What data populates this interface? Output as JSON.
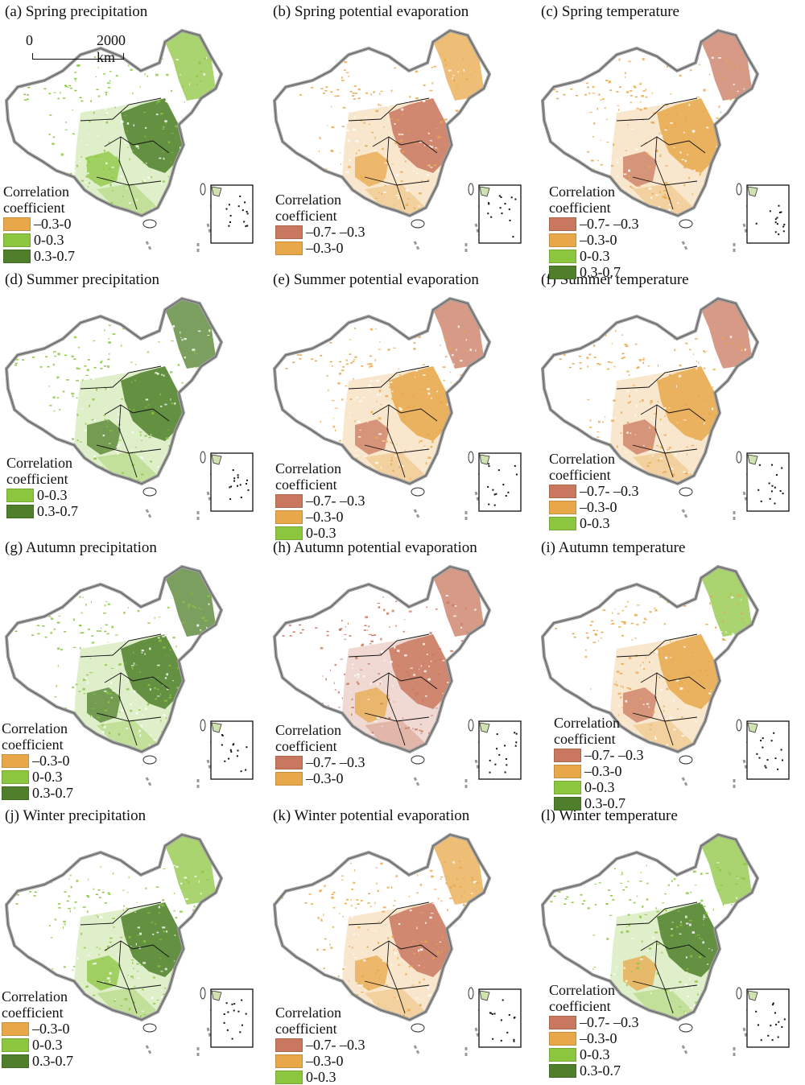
{
  "scalebar": {
    "zero": "0",
    "distance": "2000 km"
  },
  "legend_title": "Correlation\ncoefficient",
  "classes": {
    "neg_strong": {
      "label": "–0.7- –0.3",
      "color": "#c9785f"
    },
    "neg_weak": {
      "label": "–0.3-0",
      "color": "#e8a84a"
    },
    "pos_weak": {
      "label": "0-0.3",
      "color": "#8cc63f"
    },
    "pos_strong": {
      "label": "0.3-0.7",
      "color": "#4f7f2a"
    }
  },
  "panels": [
    {
      "id": "a",
      "title": "(a) Spring precipitation",
      "legend": [
        [
          "–0.3-0",
          "#e8a84a"
        ],
        [
          "0-0.3",
          "#8cc63f"
        ],
        [
          "0.3-0.7",
          "#4f7f2a"
        ]
      ],
      "dominant": "#8cc63f",
      "east": "#4f7f2a",
      "north": "#8cc63f",
      "sw": "#8cc63f"
    },
    {
      "id": "b",
      "title": "(b) Spring potential evaporation",
      "legend": [
        [
          "–0.7- –0.3",
          "#c9785f"
        ],
        [
          "–0.3-0",
          "#e8a84a"
        ]
      ],
      "dominant": "#e8a84a",
      "east": "#c9785f",
      "north": "#e8a84a",
      "sw": "#e8a84a"
    },
    {
      "id": "c",
      "title": "(c) Spring temperature",
      "legend": [
        [
          "–0.7- –0.3",
          "#c9785f"
        ],
        [
          "–0.3-0",
          "#e8a84a"
        ],
        [
          "0-0.3",
          "#8cc63f"
        ],
        [
          "0.3-0.7",
          "#4f7f2a"
        ]
      ],
      "dominant": "#e8a84a",
      "east": "#e8a84a",
      "north": "#c9785f",
      "sw": "#c9785f"
    },
    {
      "id": "d",
      "title": "(d) Summer precipitation",
      "legend": [
        [
          "0-0.3",
          "#8cc63f"
        ],
        [
          "0.3-0.7",
          "#4f7f2a"
        ]
      ],
      "dominant": "#8cc63f",
      "east": "#4f7f2a",
      "north": "#4f7f2a",
      "sw": "#4f7f2a"
    },
    {
      "id": "e",
      "title": "(e) Summer potential evaporation",
      "legend": [
        [
          "–0.7- –0.3",
          "#c9785f"
        ],
        [
          "–0.3-0",
          "#e8a84a"
        ],
        [
          "0-0.3",
          "#8cc63f"
        ]
      ],
      "dominant": "#e8a84a",
      "east": "#e8a84a",
      "north": "#c9785f",
      "sw": "#c9785f"
    },
    {
      "id": "f",
      "title": "(f) Summer temperature",
      "legend": [
        [
          "–0.7- –0.3",
          "#c9785f"
        ],
        [
          "–0.3-0",
          "#e8a84a"
        ],
        [
          "0-0.3",
          "#8cc63f"
        ]
      ],
      "dominant": "#e8a84a",
      "east": "#e8a84a",
      "north": "#c9785f",
      "sw": "#c9785f"
    },
    {
      "id": "g",
      "title": "(g) Autumn precipitation",
      "legend": [
        [
          "–0.3-0",
          "#e8a84a"
        ],
        [
          "0-0.3",
          "#8cc63f"
        ],
        [
          "0.3-0.7",
          "#4f7f2a"
        ]
      ],
      "dominant": "#8cc63f",
      "east": "#4f7f2a",
      "north": "#4f7f2a",
      "sw": "#4f7f2a"
    },
    {
      "id": "h",
      "title": "(h) Autumn potential evaporation",
      "legend": [
        [
          "–0.7- –0.3",
          "#c9785f"
        ],
        [
          "–0.3-0",
          "#e8a84a"
        ]
      ],
      "dominant": "#c9785f",
      "east": "#c9785f",
      "north": "#c9785f",
      "sw": "#e8a84a"
    },
    {
      "id": "i",
      "title": "(i) Autumn temperature",
      "legend": [
        [
          "–0.7- –0.3",
          "#c9785f"
        ],
        [
          "–0.3-0",
          "#e8a84a"
        ],
        [
          "0-0.3",
          "#8cc63f"
        ],
        [
          "0.3-0.7",
          "#4f7f2a"
        ]
      ],
      "dominant": "#e8a84a",
      "east": "#e8a84a",
      "north": "#8cc63f",
      "sw": "#c9785f"
    },
    {
      "id": "j",
      "title": "(j) Winter precipitation",
      "legend": [
        [
          "–0.3-0",
          "#e8a84a"
        ],
        [
          "0-0.3",
          "#8cc63f"
        ],
        [
          "0.3-0.7",
          "#4f7f2a"
        ]
      ],
      "dominant": "#8cc63f",
      "east": "#4f7f2a",
      "north": "#8cc63f",
      "sw": "#8cc63f"
    },
    {
      "id": "k",
      "title": "(k) Winter potential evaporation",
      "legend": [
        [
          "–0.7- –0.3",
          "#c9785f"
        ],
        [
          "–0.3-0",
          "#e8a84a"
        ],
        [
          "0-0.3",
          "#8cc63f"
        ]
      ],
      "dominant": "#e8a84a",
      "east": "#c9785f",
      "north": "#e8a84a",
      "sw": "#e8a84a"
    },
    {
      "id": "l",
      "title": "(l) Winter temperature",
      "legend": [
        [
          "–0.7- –0.3",
          "#c9785f"
        ],
        [
          "–0.3-0",
          "#e8a84a"
        ],
        [
          "0-0.3",
          "#8cc63f"
        ],
        [
          "0.3-0.7",
          "#4f7f2a"
        ]
      ],
      "dominant": "#8cc63f",
      "east": "#4f7f2a",
      "north": "#8cc63f",
      "sw": "#e8a84a"
    }
  ]
}
